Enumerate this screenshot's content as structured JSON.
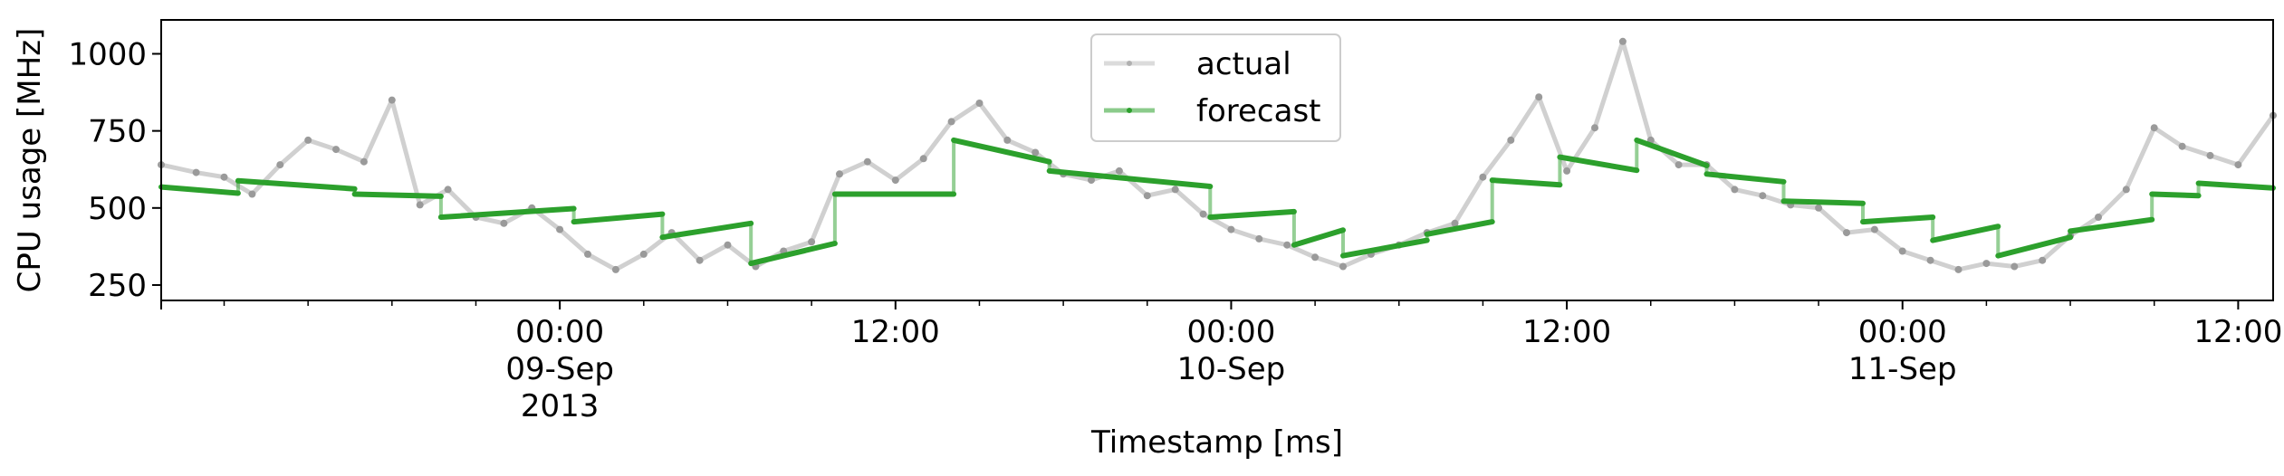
{
  "chart_data": {
    "type": "line",
    "title": "",
    "xlabel": "Timestamp [ms]",
    "ylabel": "CPU usage [MHz]",
    "ylim": [
      200,
      1110
    ],
    "xlim": [
      "2013-09-08 09:45",
      "2013-09-11 13:15"
    ],
    "yticks": [
      {
        "value": 250,
        "label": "250"
      },
      {
        "value": 500,
        "label": "500"
      },
      {
        "value": 750,
        "label": "750"
      },
      {
        "value": 1000,
        "label": "1000"
      }
    ],
    "xticks": [
      {
        "time": "2013-09-09 00:00",
        "lines": [
          "00:00",
          "09-Sep",
          "2013"
        ]
      },
      {
        "time": "2013-09-09 12:00",
        "lines": [
          "12:00"
        ]
      },
      {
        "time": "2013-09-10 00:00",
        "lines": [
          "00:00",
          "10-Sep"
        ]
      },
      {
        "time": "2013-09-10 12:00",
        "lines": [
          "12:00"
        ]
      },
      {
        "time": "2013-09-11 00:00",
        "lines": [
          "00:00",
          "11-Sep"
        ]
      },
      {
        "time": "2013-09-11 12:00",
        "lines": [
          "12:00"
        ]
      }
    ],
    "legend": {
      "position": "top-center"
    },
    "grid": false,
    "series": [
      {
        "name": "actual",
        "color": "#b0b0b0",
        "style": "line-with-dot-markers",
        "points": [
          [
            "2013-09-08 09:45",
            640
          ],
          [
            "2013-09-08 11:00",
            615
          ],
          [
            "2013-09-08 12:00",
            600
          ],
          [
            "2013-09-08 13:00",
            545
          ],
          [
            "2013-09-08 14:00",
            640
          ],
          [
            "2013-09-08 15:00",
            720
          ],
          [
            "2013-09-08 16:00",
            690
          ],
          [
            "2013-09-08 17:00",
            650
          ],
          [
            "2013-09-08 18:00",
            850
          ],
          [
            "2013-09-08 19:00",
            510
          ],
          [
            "2013-09-08 20:00",
            560
          ],
          [
            "2013-09-08 21:00",
            470
          ],
          [
            "2013-09-08 22:00",
            450
          ],
          [
            "2013-09-08 23:00",
            500
          ],
          [
            "2013-09-09 00:00",
            430
          ],
          [
            "2013-09-09 01:00",
            350
          ],
          [
            "2013-09-09 02:00",
            300
          ],
          [
            "2013-09-09 03:00",
            350
          ],
          [
            "2013-09-09 04:00",
            420
          ],
          [
            "2013-09-09 05:00",
            330
          ],
          [
            "2013-09-09 06:00",
            380
          ],
          [
            "2013-09-09 07:00",
            310
          ],
          [
            "2013-09-09 08:00",
            360
          ],
          [
            "2013-09-09 09:00",
            390
          ],
          [
            "2013-09-09 10:00",
            610
          ],
          [
            "2013-09-09 11:00",
            650
          ],
          [
            "2013-09-09 12:00",
            590
          ],
          [
            "2013-09-09 13:00",
            660
          ],
          [
            "2013-09-09 14:00",
            780
          ],
          [
            "2013-09-09 15:00",
            840
          ],
          [
            "2013-09-09 16:00",
            720
          ],
          [
            "2013-09-09 17:00",
            680
          ],
          [
            "2013-09-09 18:00",
            610
          ],
          [
            "2013-09-09 19:00",
            590
          ],
          [
            "2013-09-09 20:00",
            620
          ],
          [
            "2013-09-09 21:00",
            540
          ],
          [
            "2013-09-09 22:00",
            560
          ],
          [
            "2013-09-09 23:00",
            480
          ],
          [
            "2013-09-10 00:00",
            430
          ],
          [
            "2013-09-10 01:00",
            400
          ],
          [
            "2013-09-10 02:00",
            380
          ],
          [
            "2013-09-10 03:00",
            340
          ],
          [
            "2013-09-10 04:00",
            310
          ],
          [
            "2013-09-10 05:00",
            350
          ],
          [
            "2013-09-10 06:00",
            380
          ],
          [
            "2013-09-10 07:00",
            420
          ],
          [
            "2013-09-10 08:00",
            450
          ],
          [
            "2013-09-10 09:00",
            600
          ],
          [
            "2013-09-10 10:00",
            720
          ],
          [
            "2013-09-10 11:00",
            860
          ],
          [
            "2013-09-10 12:00",
            620
          ],
          [
            "2013-09-10 13:00",
            760
          ],
          [
            "2013-09-10 14:00",
            1040
          ],
          [
            "2013-09-10 15:00",
            720
          ],
          [
            "2013-09-10 16:00",
            640
          ],
          [
            "2013-09-10 17:00",
            640
          ],
          [
            "2013-09-10 18:00",
            560
          ],
          [
            "2013-09-10 19:00",
            540
          ],
          [
            "2013-09-10 20:00",
            510
          ],
          [
            "2013-09-10 21:00",
            500
          ],
          [
            "2013-09-10 22:00",
            420
          ],
          [
            "2013-09-10 23:00",
            430
          ],
          [
            "2013-09-11 00:00",
            360
          ],
          [
            "2013-09-11 01:00",
            330
          ],
          [
            "2013-09-11 02:00",
            300
          ],
          [
            "2013-09-11 03:00",
            320
          ],
          [
            "2013-09-11 04:00",
            310
          ],
          [
            "2013-09-11 05:00",
            330
          ],
          [
            "2013-09-11 06:00",
            410
          ],
          [
            "2013-09-11 07:00",
            470
          ],
          [
            "2013-09-11 08:00",
            560
          ],
          [
            "2013-09-11 09:00",
            760
          ],
          [
            "2013-09-11 10:00",
            700
          ],
          [
            "2013-09-11 11:00",
            670
          ],
          [
            "2013-09-11 12:00",
            640
          ],
          [
            "2013-09-11 13:15",
            800
          ]
        ]
      },
      {
        "name": "forecast",
        "color": "#2ca02c",
        "style": "piecewise-segments",
        "segments": [
          {
            "start": "2013-09-08 09:45",
            "end": "2013-09-08 12:30",
            "from": 568,
            "to": 548
          },
          {
            "start": "2013-09-08 12:30",
            "end": "2013-09-08 16:40",
            "from": 588,
            "to": 562
          },
          {
            "start": "2013-09-08 16:40",
            "end": "2013-09-08 19:45",
            "from": 545,
            "to": 538
          },
          {
            "start": "2013-09-08 19:45",
            "end": "2013-09-09 00:30",
            "from": 470,
            "to": 498
          },
          {
            "start": "2013-09-09 00:30",
            "end": "2013-09-09 03:40",
            "from": 455,
            "to": 480
          },
          {
            "start": "2013-09-09 03:40",
            "end": "2013-09-09 06:50",
            "from": 405,
            "to": 450
          },
          {
            "start": "2013-09-09 06:50",
            "end": "2013-09-09 09:50",
            "from": 320,
            "to": 385
          },
          {
            "start": "2013-09-09 09:50",
            "end": "2013-09-09 14:05",
            "from": 545,
            "to": 545
          },
          {
            "start": "2013-09-09 14:05",
            "end": "2013-09-09 17:30",
            "from": 720,
            "to": 650
          },
          {
            "start": "2013-09-09 17:30",
            "end": "2013-09-09 23:15",
            "from": 620,
            "to": 570
          },
          {
            "start": "2013-09-09 23:15",
            "end": "2013-09-10 02:15",
            "from": 470,
            "to": 488
          },
          {
            "start": "2013-09-10 02:15",
            "end": "2013-09-10 04:00",
            "from": 380,
            "to": 428
          },
          {
            "start": "2013-09-10 04:00",
            "end": "2013-09-10 07:00",
            "from": 345,
            "to": 395
          },
          {
            "start": "2013-09-10 07:00",
            "end": "2013-09-10 09:20",
            "from": 415,
            "to": 455
          },
          {
            "start": "2013-09-10 09:20",
            "end": "2013-09-10 11:45",
            "from": 590,
            "to": 575
          },
          {
            "start": "2013-09-10 11:45",
            "end": "2013-09-10 14:30",
            "from": 665,
            "to": 622
          },
          {
            "start": "2013-09-10 14:30",
            "end": "2013-09-10 17:00",
            "from": 720,
            "to": 638
          },
          {
            "start": "2013-09-10 17:00",
            "end": "2013-09-10 19:45",
            "from": 610,
            "to": 585
          },
          {
            "start": "2013-09-10 19:45",
            "end": "2013-09-10 22:35",
            "from": 522,
            "to": 515
          },
          {
            "start": "2013-09-10 22:35",
            "end": "2013-09-11 01:05",
            "from": 455,
            "to": 470
          },
          {
            "start": "2013-09-11 01:05",
            "end": "2013-09-11 03:25",
            "from": 395,
            "to": 440
          },
          {
            "start": "2013-09-11 03:25",
            "end": "2013-09-11 06:00",
            "from": 345,
            "to": 405
          },
          {
            "start": "2013-09-11 06:00",
            "end": "2013-09-11 08:55",
            "from": 425,
            "to": 462
          },
          {
            "start": "2013-09-11 08:55",
            "end": "2013-09-11 10:35",
            "from": 545,
            "to": 540
          },
          {
            "start": "2013-09-11 10:35",
            "end": "2013-09-11 13:15",
            "from": 580,
            "to": 565
          }
        ]
      }
    ]
  }
}
